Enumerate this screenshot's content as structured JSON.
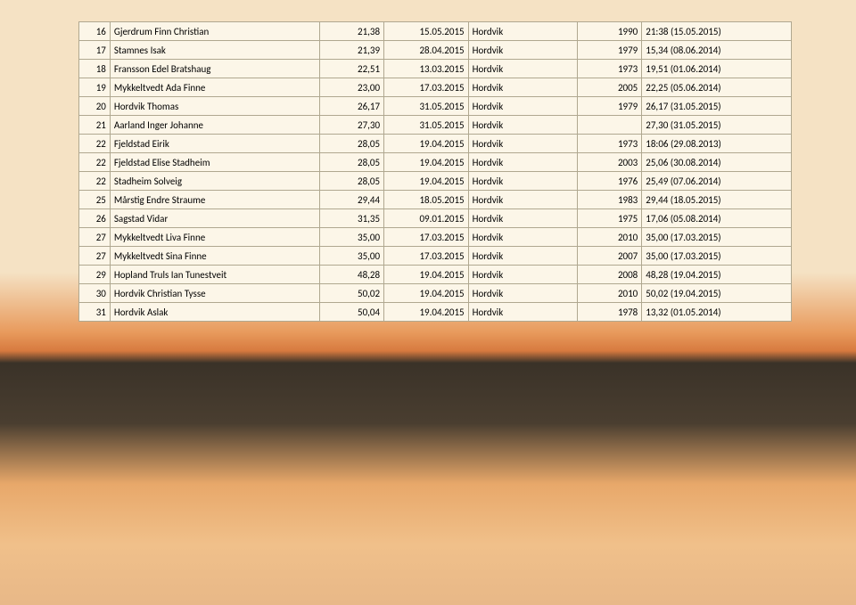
{
  "rows": [
    {
      "n": "16",
      "name": "Gjerdrum Finn Christian",
      "v": "21,38",
      "date": "15.05.2015",
      "loc": "Hordvik",
      "yr": "1990",
      "note": "21:38 (15.05.2015)"
    },
    {
      "n": "17",
      "name": "Stamnes Isak",
      "v": "21,39",
      "date": "28.04.2015",
      "loc": "Hordvik",
      "yr": "1979",
      "note": "15,34 (08.06.2014)"
    },
    {
      "n": "18",
      "name": "Fransson Edel Bratshaug",
      "v": "22,51",
      "date": "13.03.2015",
      "loc": "Hordvik",
      "yr": "1973",
      "note": "19,51 (01.06.2014)"
    },
    {
      "n": "19",
      "name": "Mykkeltvedt Ada Finne",
      "v": "23,00",
      "date": "17.03.2015",
      "loc": "Hordvik",
      "yr": "2005",
      "note": "22,25 (05.06.2014)"
    },
    {
      "n": "20",
      "name": "Hordvik Thomas",
      "v": "26,17",
      "date": "31.05.2015",
      "loc": "Hordvik",
      "yr": "1979",
      "note": "26,17 (31.05.2015)"
    },
    {
      "n": "21",
      "name": "Aarland Inger Johanne",
      "v": "27,30",
      "date": "31.05.2015",
      "loc": "Hordvik",
      "yr": "",
      "note": "27,30 (31.05.2015)"
    },
    {
      "n": "22",
      "name": "Fjeldstad Eirik",
      "v": "28,05",
      "date": "19.04.2015",
      "loc": "Hordvik",
      "yr": "1973",
      "note": "18:06 (29.08.2013)"
    },
    {
      "n": "22",
      "name": "Fjeldstad Elise Stadheim",
      "v": "28,05",
      "date": "19.04.2015",
      "loc": "Hordvik",
      "yr": "2003",
      "note": "25,06 (30.08.2014)"
    },
    {
      "n": "22",
      "name": "Stadheim Solveig",
      "v": "28,05",
      "date": "19.04.2015",
      "loc": "Hordvik",
      "yr": "1976",
      "note": "25,49 (07.06.2014)"
    },
    {
      "n": "25",
      "name": "Mårstig Endre Straume",
      "v": "29,44",
      "date": "18.05.2015",
      "loc": "Hordvik",
      "yr": "1983",
      "note": "29,44 (18.05.2015)"
    },
    {
      "n": "26",
      "name": "Sagstad Vidar",
      "v": "31,35",
      "date": "09.01.2015",
      "loc": "Hordvik",
      "yr": "1975",
      "note": "17,06 (05.08.2014)"
    },
    {
      "n": "27",
      "name": "Mykkeltvedt Liva Finne",
      "v": "35,00",
      "date": "17.03.2015",
      "loc": "Hordvik",
      "yr": "2010",
      "note": "35,00 (17.03.2015)"
    },
    {
      "n": "27",
      "name": "Mykkeltvedt Sina Finne",
      "v": "35,00",
      "date": "17.03.2015",
      "loc": "Hordvik",
      "yr": "2007",
      "note": "35,00 (17.03.2015)"
    },
    {
      "n": "29",
      "name": "Hopland Truls Ian Tunestveit",
      "v": "48,28",
      "date": "19.04.2015",
      "loc": "Hordvik",
      "yr": "2008",
      "note": "48,28 (19.04.2015)"
    },
    {
      "n": "30",
      "name": "Hordvik Christian Tysse",
      "v": "50,02",
      "date": "19.04.2015",
      "loc": "Hordvik",
      "yr": "2010",
      "note": "50,02 (19.04.2015)"
    },
    {
      "n": "31",
      "name": "Hordvik Aslak",
      "v": "50,04",
      "date": "19.04.2015",
      "loc": "Hordvik",
      "yr": "1978",
      "note": "13,32 (01.05.2014)"
    }
  ]
}
